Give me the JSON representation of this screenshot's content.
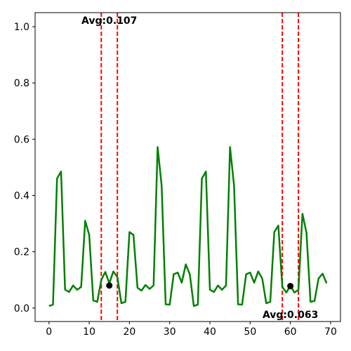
{
  "chart_data": {
    "type": "line",
    "title": "",
    "xlabel": "",
    "ylabel": "",
    "xlim": [
      -3.45,
      72.45
    ],
    "ylim": [
      -0.048,
      1.05
    ],
    "xticks": [
      0,
      10,
      20,
      30,
      40,
      50,
      60,
      70
    ],
    "yticks": [
      0.0,
      0.2,
      0.4,
      0.6,
      0.8,
      1.0
    ],
    "xtick_labels": [
      "0",
      "10",
      "20",
      "30",
      "40",
      "50",
      "60",
      "70"
    ],
    "ytick_labels": [
      "0.0",
      "0.2",
      "0.4",
      "0.6",
      "0.8",
      "1.0"
    ],
    "grid": false,
    "series": [
      {
        "color": "#008000",
        "x": [
          0,
          1,
          2,
          3,
          4,
          5,
          6,
          7,
          8,
          9,
          10,
          11,
          12,
          13,
          14,
          15,
          16,
          17,
          18,
          19,
          20,
          21,
          22,
          23,
          24,
          25,
          26,
          27,
          28,
          29,
          30,
          31,
          32,
          33,
          34,
          35,
          36,
          37,
          38,
          39,
          40,
          41,
          42,
          43,
          44,
          45,
          46,
          47,
          48,
          49,
          50,
          51,
          52,
          53,
          54,
          55,
          56,
          57,
          58,
          59,
          60,
          61,
          62,
          63,
          64,
          65,
          66,
          67,
          68,
          69
        ],
        "y": [
          0.007,
          0.012,
          0.46,
          0.485,
          0.065,
          0.057,
          0.08,
          0.065,
          0.075,
          0.31,
          0.26,
          0.027,
          0.022,
          0.1,
          0.128,
          0.088,
          0.13,
          0.11,
          0.017,
          0.022,
          0.27,
          0.26,
          0.072,
          0.062,
          0.082,
          0.068,
          0.08,
          0.572,
          0.435,
          0.013,
          0.012,
          0.12,
          0.126,
          0.09,
          0.155,
          0.12,
          0.007,
          0.012,
          0.46,
          0.485,
          0.065,
          0.057,
          0.08,
          0.065,
          0.08,
          0.572,
          0.435,
          0.013,
          0.012,
          0.12,
          0.126,
          0.09,
          0.13,
          0.105,
          0.017,
          0.022,
          0.27,
          0.293,
          0.075,
          0.055,
          0.08,
          0.055,
          0.065,
          0.335,
          0.268,
          0.022,
          0.025,
          0.105,
          0.122,
          0.088
        ]
      }
    ],
    "vlines": [
      13,
      17,
      58,
      62
    ],
    "vline_color": "#ff0000",
    "points": [
      {
        "x": 15,
        "y": 0.08
      },
      {
        "x": 60,
        "y": 0.078
      }
    ],
    "point_color": "#000000",
    "annotations": [
      {
        "text": "Avg:0.107",
        "x": 15,
        "y": 1.01,
        "anchor": "middle"
      },
      {
        "text": "Avg:0.063",
        "x": 60,
        "y": -0.035,
        "anchor": "middle"
      }
    ]
  }
}
